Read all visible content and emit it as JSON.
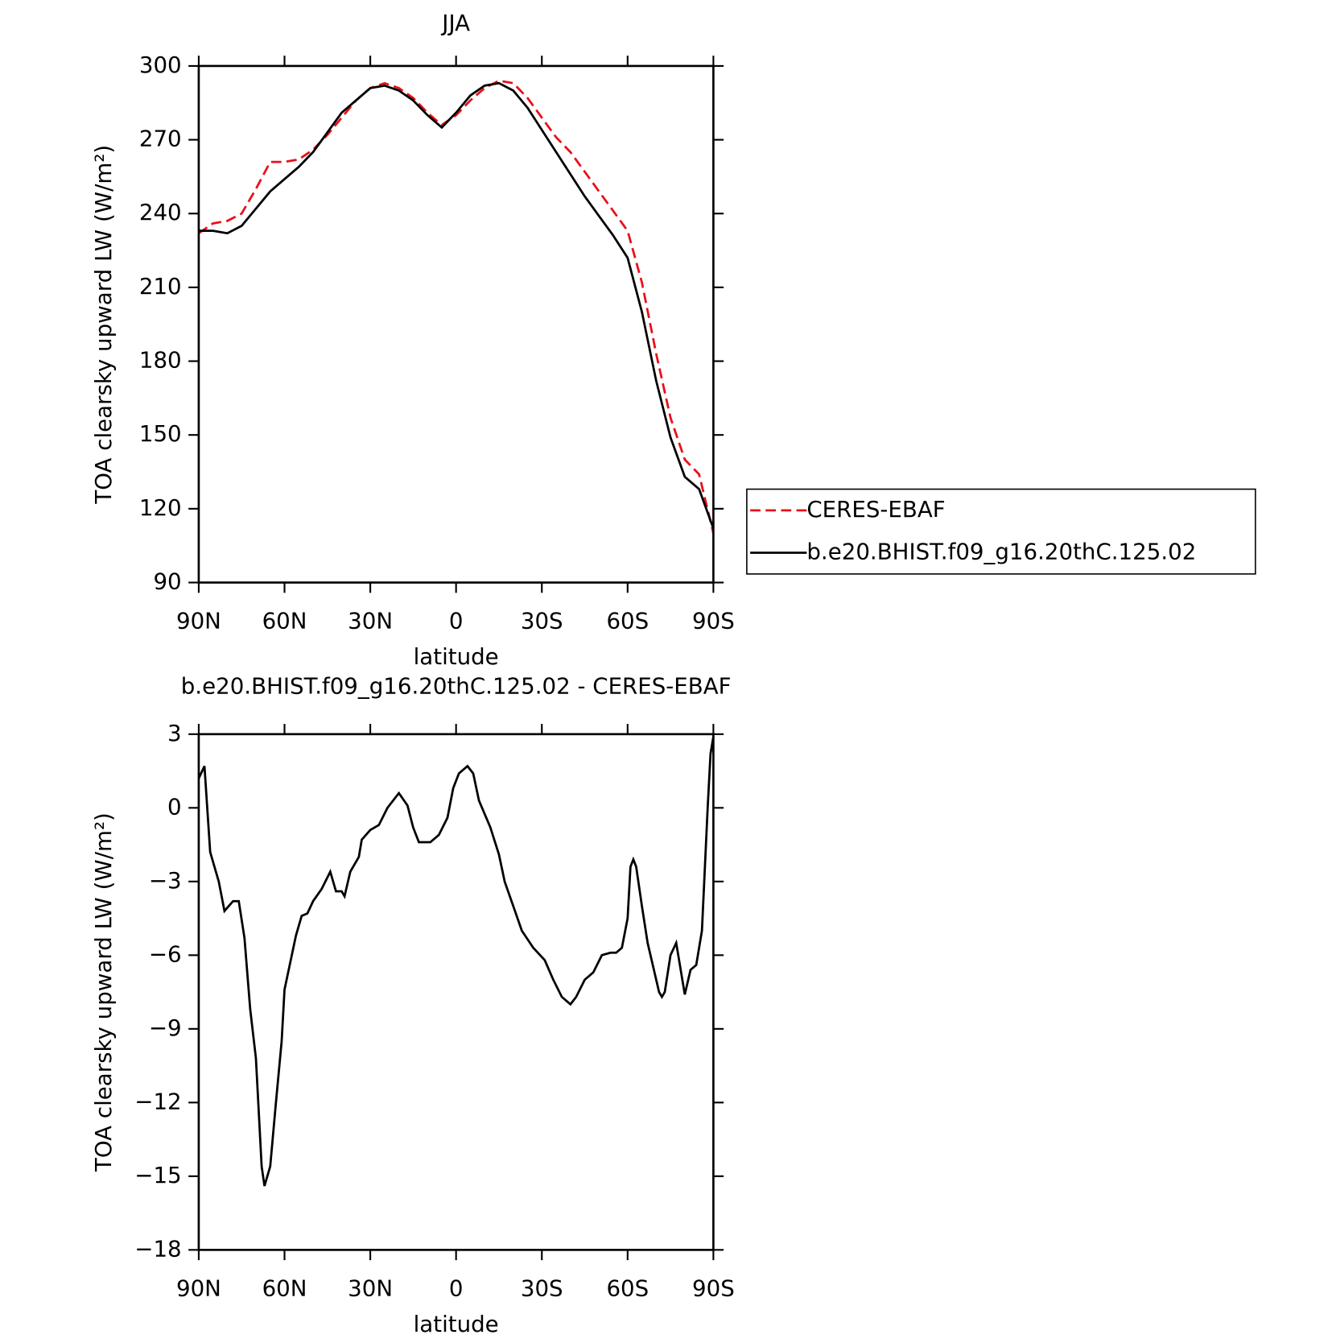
{
  "chart_data": [
    {
      "type": "line",
      "title": "JJA",
      "xlabel": "latitude",
      "ylabel": "TOA clearsky upward LW (W/m²)",
      "x": [
        90,
        85,
        80,
        75,
        70,
        65,
        60,
        55,
        50,
        45,
        40,
        35,
        30,
        25,
        20,
        15,
        10,
        5,
        0,
        -5,
        -10,
        -15,
        -20,
        -25,
        -30,
        -35,
        -40,
        -45,
        -50,
        -55,
        -60,
        -65,
        -70,
        -75,
        -80,
        -85,
        -90
      ],
      "series": [
        {
          "name": "CERES-EBAF",
          "color": "#e8101a",
          "dash": true,
          "values": [
            232,
            236,
            237,
            240,
            250,
            261,
            261,
            262,
            266,
            272,
            279,
            286,
            291,
            293,
            291,
            287,
            281,
            276,
            280,
            286,
            291,
            294,
            293,
            287,
            279,
            271,
            265,
            257,
            249,
            241,
            233,
            212,
            183,
            157,
            140,
            134,
            110
          ]
        },
        {
          "name": "b.e20.BHIST.f09_g16.20thC.125.02",
          "color": "#000000",
          "dash": false,
          "values": [
            233,
            233,
            232,
            235,
            242,
            249,
            254,
            259,
            265,
            273,
            281,
            286,
            291,
            292,
            290,
            286,
            280,
            275,
            281,
            288,
            292,
            293,
            290,
            283,
            274,
            265,
            256,
            247,
            239,
            231,
            222,
            200,
            172,
            149,
            133,
            128,
            112
          ]
        }
      ],
      "xlim": [
        90,
        -90
      ],
      "xticks": [
        {
          "value": 90,
          "label": "90N"
        },
        {
          "value": 60,
          "label": "60N"
        },
        {
          "value": 30,
          "label": "30N"
        },
        0,
        {
          "value": -30,
          "label": "30S"
        },
        {
          "value": -60,
          "label": "60S"
        },
        {
          "value": -90,
          "label": "90S"
        }
      ],
      "ylim": [
        90,
        300
      ],
      "yticks": [
        90,
        120,
        150,
        180,
        210,
        240,
        270,
        300
      ],
      "legend": "right"
    },
    {
      "type": "line",
      "title": "b.e20.BHIST.f09_g16.20thC.125.02 - CERES-EBAF",
      "xlabel": "latitude",
      "ylabel": "TOA clearsky upward LW (W/m²)",
      "x": [
        90,
        88,
        86,
        83,
        81,
        78,
        76,
        74,
        72,
        70,
        68,
        67,
        65,
        63,
        61,
        60,
        58,
        56,
        54,
        52,
        50,
        47,
        44,
        42,
        40,
        39,
        37,
        34,
        33,
        30,
        27,
        24,
        22,
        20,
        17,
        15,
        13,
        11,
        9,
        6,
        3,
        1,
        -1,
        -4,
        -6,
        -8,
        -12,
        -15,
        -17,
        -20,
        -23,
        -27,
        -31,
        -34,
        -37,
        -40,
        -42,
        -45,
        -48,
        -51,
        -54,
        -56,
        -58,
        -60,
        -61,
        -62,
        -63,
        -65,
        -67,
        -69,
        -71,
        -72,
        -73,
        -75,
        -77,
        -78,
        -80,
        -82,
        -84,
        -86,
        -88,
        -89,
        -90
      ],
      "series": [
        {
          "name": null,
          "color": "#000000",
          "dash": false,
          "values": [
            1.2,
            1.7,
            -1.8,
            -3.0,
            -4.2,
            -3.8,
            -3.8,
            -5.3,
            -8.2,
            -10.2,
            -14.6,
            -15.4,
            -14.6,
            -12.0,
            -9.5,
            -7.4,
            -6.3,
            -5.2,
            -4.4,
            -4.3,
            -3.8,
            -3.3,
            -2.6,
            -3.4,
            -3.4,
            -3.6,
            -2.6,
            -2.0,
            -1.3,
            -0.9,
            -0.7,
            0.0,
            0.3,
            0.6,
            0.1,
            -0.8,
            -1.4,
            -1.4,
            -1.4,
            -1.1,
            -0.4,
            0.8,
            1.4,
            1.7,
            1.4,
            0.3,
            -0.8,
            -1.9,
            -3.0,
            -4.0,
            -5.0,
            -5.7,
            -6.2,
            -7.0,
            -7.7,
            -8.0,
            -7.7,
            -7.0,
            -6.7,
            -6.0,
            -5.9,
            -5.9,
            -5.7,
            -4.5,
            -2.4,
            -2.1,
            -2.4,
            -4.0,
            -5.5,
            -6.5,
            -7.5,
            -7.7,
            -7.5,
            -6.0,
            -5.5,
            -6.2,
            -7.6,
            -6.6,
            -6.4,
            -5.0,
            0,
            2.2,
            2.9
          ]
        }
      ],
      "xlim": [
        90,
        -90
      ],
      "xticks": [
        {
          "value": 90,
          "label": "90N"
        },
        {
          "value": 60,
          "label": "60N"
        },
        {
          "value": 30,
          "label": "30N"
        },
        0,
        {
          "value": -30,
          "label": "30S"
        },
        {
          "value": -60,
          "label": "60S"
        },
        {
          "value": -90,
          "label": "90S"
        }
      ],
      "ylim": [
        -18,
        3
      ],
      "yticks": [
        {
          "value": -18,
          "label": "−18"
        },
        {
          "value": -15,
          "label": "−15"
        },
        {
          "value": -12,
          "label": "−12"
        },
        {
          "value": -9,
          "label": "−9"
        },
        {
          "value": -6,
          "label": "−6"
        },
        {
          "value": -3,
          "label": "−3"
        },
        0,
        3
      ]
    }
  ]
}
